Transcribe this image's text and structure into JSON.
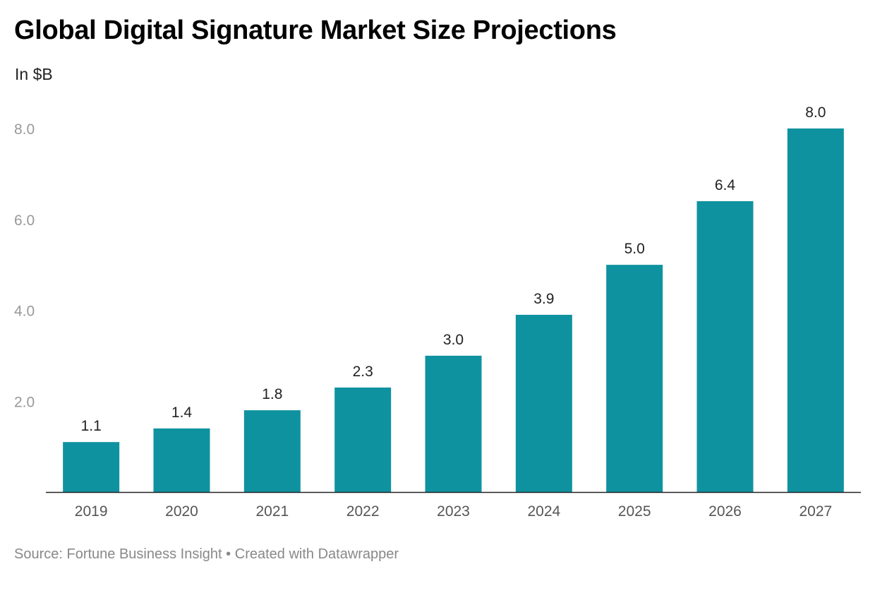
{
  "header": {
    "title": "Global Digital Signature Market Size Projections",
    "subtitle": "In $B"
  },
  "footer": {
    "source": "Source: Fortune Business Insight",
    "separator": "•",
    "credit": "Created with Datawrapper"
  },
  "chart_data": {
    "type": "bar",
    "title": "Global Digital Signature Market Size Projections",
    "subtitle": "In $B",
    "xlabel": "",
    "ylabel": "",
    "categories": [
      "2019",
      "2020",
      "2021",
      "2022",
      "2023",
      "2024",
      "2025",
      "2026",
      "2027"
    ],
    "values": [
      1.1,
      1.4,
      1.8,
      2.3,
      3.0,
      3.9,
      5.0,
      6.4,
      8.0
    ],
    "value_labels": [
      "1.1",
      "1.4",
      "1.8",
      "2.3",
      "3.0",
      "3.9",
      "5.0",
      "6.4",
      "8.0"
    ],
    "yticks": [
      2.0,
      4.0,
      6.0,
      8.0
    ],
    "ytick_labels": [
      "2.0",
      "4.0",
      "6.0",
      "8.0"
    ],
    "ylim": [
      0,
      8
    ],
    "grid": false,
    "legend": "none",
    "bar_color": "#0f929f",
    "axis_color": "#222222",
    "tick_label_color": "#999999"
  }
}
